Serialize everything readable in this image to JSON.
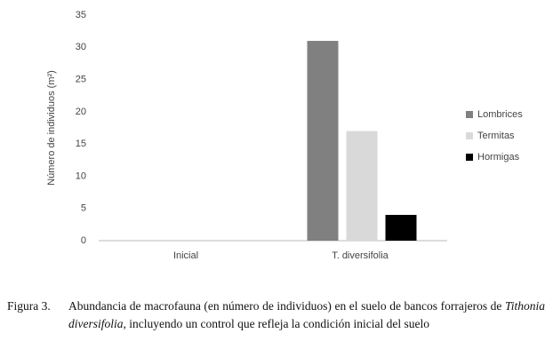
{
  "chart_data": {
    "type": "bar",
    "categories": [
      "Inicial",
      "T. diversifolia"
    ],
    "series": [
      {
        "name": "Lombrices",
        "color": "#808080",
        "values": [
          0,
          31
        ]
      },
      {
        "name": "Termitas",
        "color": "#d9d9d9",
        "values": [
          0,
          17
        ]
      },
      {
        "name": "Hormigas",
        "color": "#000000",
        "values": [
          0,
          4
        ]
      }
    ],
    "ylabel": "Número de individuos (m²)",
    "ylim": [
      0,
      35
    ],
    "yticks": [
      0,
      5,
      10,
      15,
      20,
      25,
      30,
      35
    ],
    "grid": false,
    "legend": "right"
  },
  "caption": {
    "label": "Figura 3.",
    "parts": [
      "Abundancia de macrofauna (en número de individuos) en el suelo de bancos forrajeros de ",
      "Tithonia diversifolia",
      ", incluyendo un control que refleja la condición inicial del suelo"
    ]
  }
}
